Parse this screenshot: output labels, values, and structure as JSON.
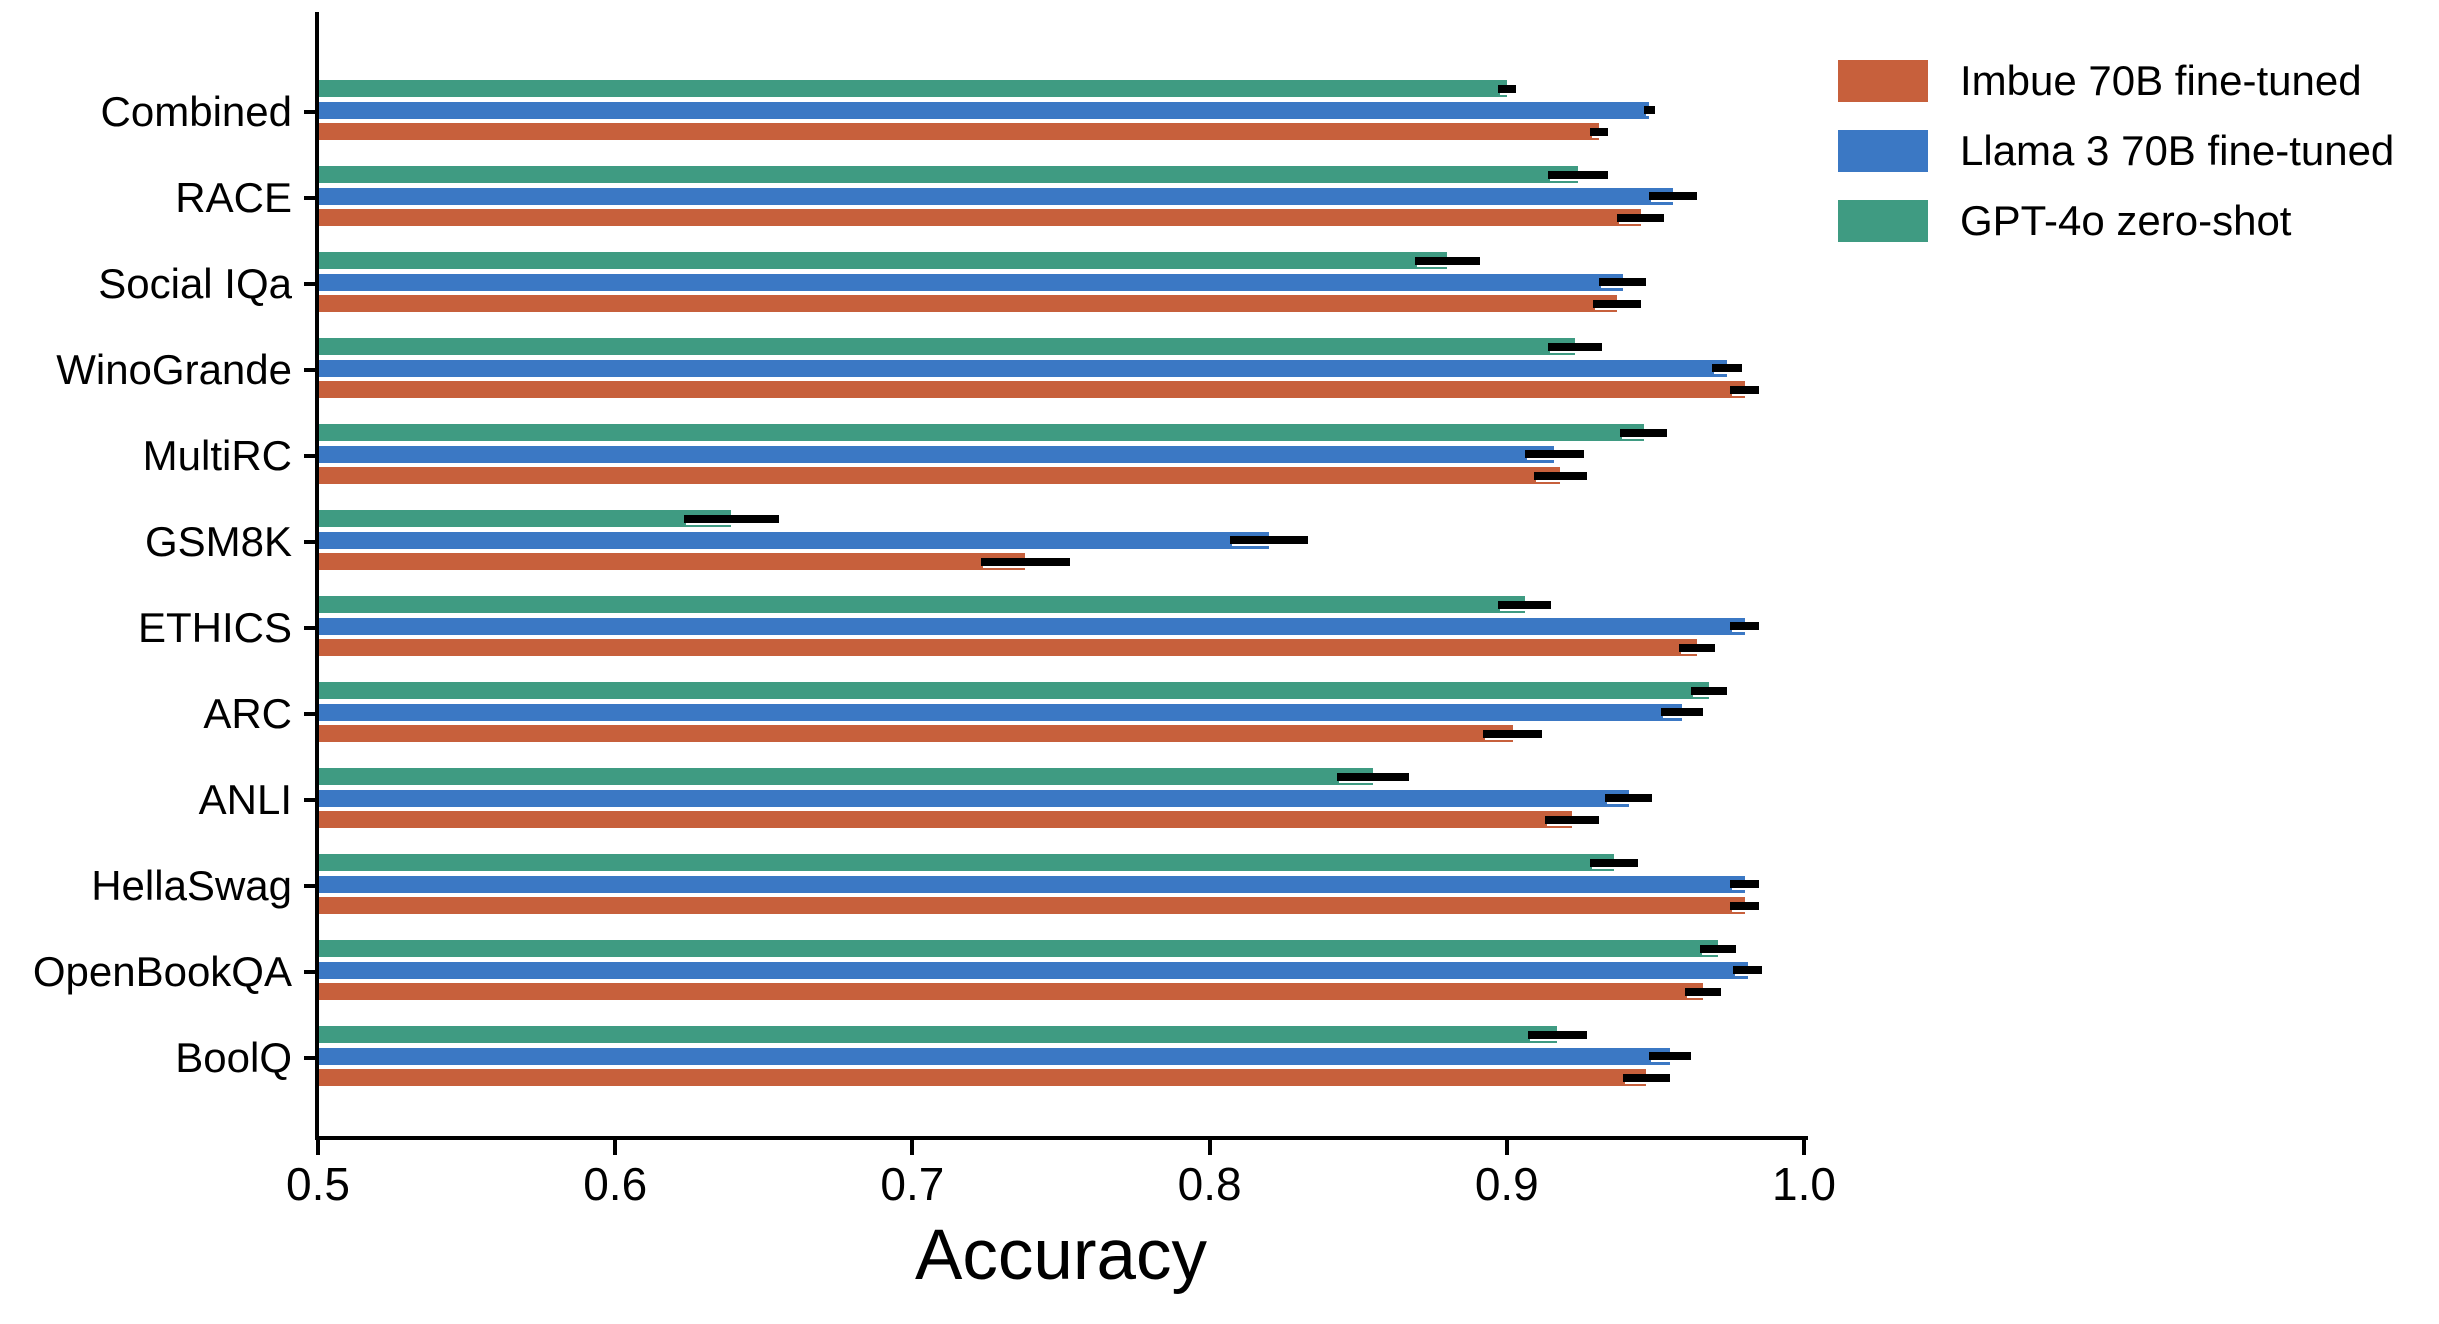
{
  "figure": {
    "background": "#ffffff",
    "text_color": "#000000",
    "axis_color": "#000000"
  },
  "chart_data": {
    "type": "bar",
    "orientation": "horizontal",
    "title": "",
    "xlabel": "Accuracy",
    "ylabel": "",
    "xlim": [
      0.5,
      1.0
    ],
    "grid": false,
    "legend_position": "upper right",
    "error_bars": true,
    "xtick_labels": [
      "0.5",
      "0.6",
      "0.7",
      "0.8",
      "0.9",
      "1.0"
    ],
    "xtick_values": [
      0.5,
      0.6,
      0.7,
      0.8,
      0.9,
      1.0
    ],
    "categories": [
      "Combined",
      "RACE",
      "Social IQa",
      "WinoGrande",
      "MultiRC",
      "GSM8K",
      "ETHICS",
      "ARC",
      "ANLI",
      "HellaSwag",
      "OpenBookQA",
      "BoolQ"
    ],
    "bar_order_top_to_bottom": [
      "GPT-4o zero-shot",
      "Llama 3 70B fine-tuned",
      "Imbue 70B fine-tuned"
    ],
    "series": [
      {
        "name": "Imbue 70B fine-tuned",
        "color": "#C7603C",
        "values": [
          0.931,
          0.945,
          0.937,
          0.98,
          0.918,
          0.738,
          0.964,
          0.902,
          0.922,
          0.98,
          0.966,
          0.947
        ],
        "errors": [
          0.003,
          0.008,
          0.008,
          0.005,
          0.009,
          0.015,
          0.006,
          0.01,
          0.009,
          0.005,
          0.006,
          0.008
        ]
      },
      {
        "name": "Llama 3 70B fine-tuned",
        "color": "#3B78C4",
        "values": [
          0.948,
          0.956,
          0.939,
          0.974,
          0.916,
          0.82,
          0.98,
          0.959,
          0.941,
          0.98,
          0.981,
          0.955
        ],
        "errors": [
          0.002,
          0.008,
          0.008,
          0.005,
          0.01,
          0.013,
          0.005,
          0.007,
          0.008,
          0.005,
          0.005,
          0.007
        ]
      },
      {
        "name": "GPT-4o zero-shot",
        "color": "#3F9B82",
        "values": [
          0.9,
          0.924,
          0.88,
          0.923,
          0.946,
          0.639,
          0.906,
          0.968,
          0.855,
          0.936,
          0.971,
          0.917
        ],
        "errors": [
          0.003,
          0.01,
          0.011,
          0.009,
          0.008,
          0.016,
          0.009,
          0.006,
          0.012,
          0.008,
          0.006,
          0.01
        ]
      }
    ]
  }
}
